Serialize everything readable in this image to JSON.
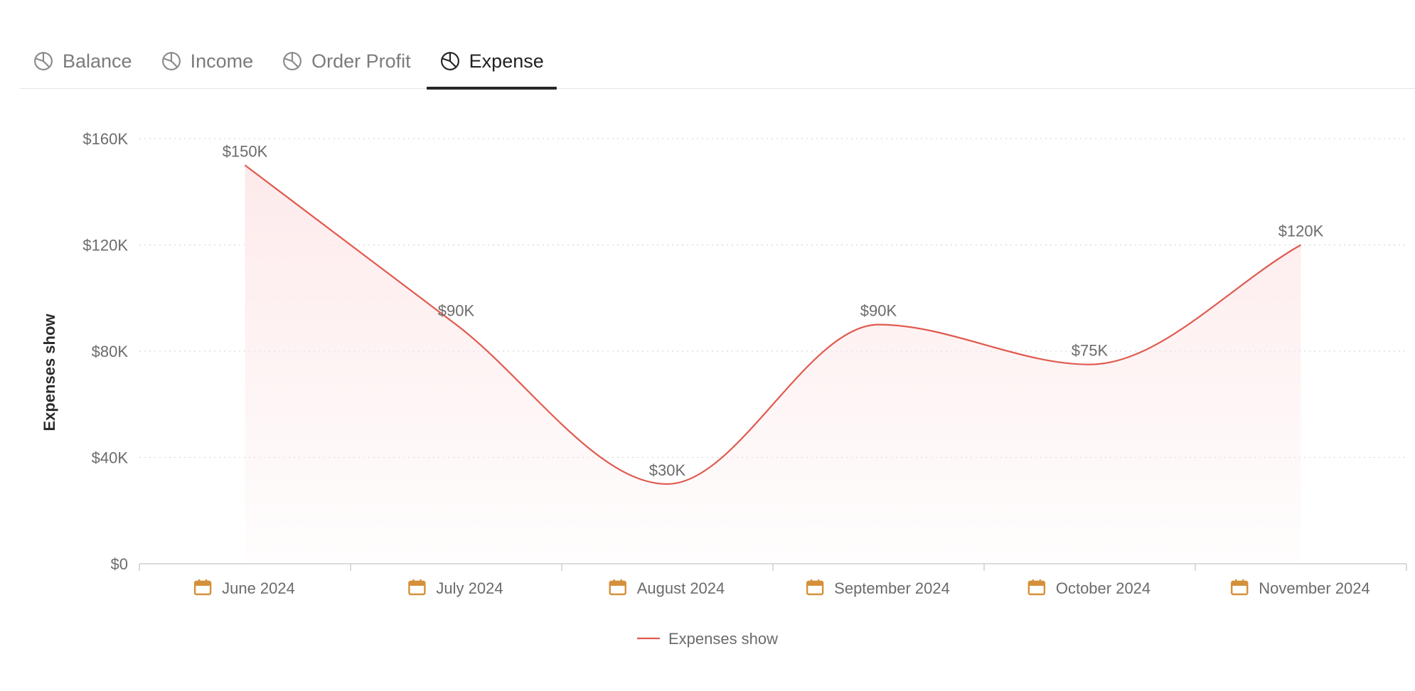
{
  "tabs": [
    {
      "label": "Balance",
      "icon": "pie-chart-icon",
      "active": false
    },
    {
      "label": "Income",
      "icon": "pie-chart-icon",
      "active": false
    },
    {
      "label": "Order Profit",
      "icon": "pie-chart-icon",
      "active": false
    },
    {
      "label": "Expense",
      "icon": "pie-chart-icon",
      "active": true
    }
  ],
  "colors": {
    "line": "#e05a4f",
    "area_top": "#fde9ea",
    "calendar_icon": "#d4903a",
    "grid": "#d9d9d9",
    "axis": "#cfcfcf"
  },
  "chart_data": {
    "type": "area",
    "title": "",
    "xlabel": "",
    "ylabel": "Expenses show",
    "categories": [
      "June 2024",
      "July 2024",
      "August 2024",
      "September 2024",
      "October 2024",
      "November 2024"
    ],
    "series": [
      {
        "name": "Expenses show",
        "values": [
          150000,
          90000,
          30000,
          90000,
          75000,
          120000
        ],
        "labels": [
          "$150K",
          "$90K",
          "$30K",
          "$90K",
          "$75K",
          "$120K"
        ]
      }
    ],
    "ylim": [
      0,
      160000
    ],
    "yticks": [
      0,
      40000,
      80000,
      120000,
      160000
    ],
    "ytick_labels": [
      "$0",
      "$40K",
      "$80K",
      "$120K",
      "$160K"
    ],
    "grid": true,
    "legend": "bottom-center",
    "x_icon": "calendar-icon"
  }
}
